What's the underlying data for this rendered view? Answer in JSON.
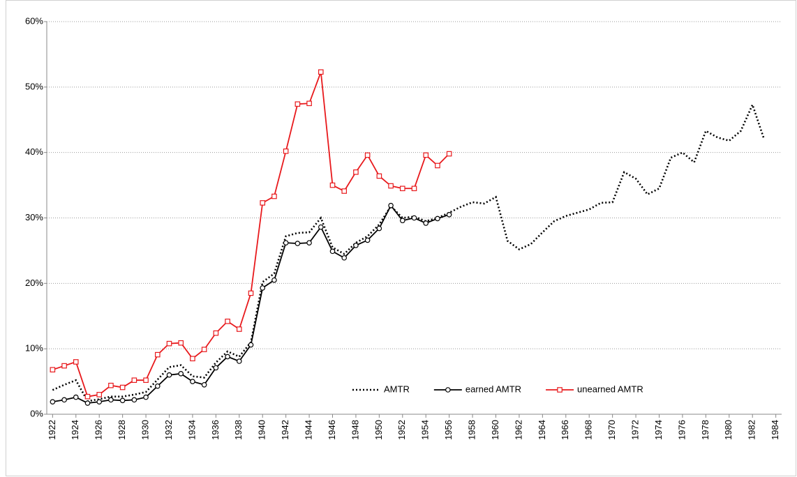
{
  "chart_data": {
    "type": "line",
    "x": [
      1922,
      1923,
      1924,
      1925,
      1926,
      1927,
      1928,
      1929,
      1930,
      1931,
      1932,
      1933,
      1934,
      1935,
      1936,
      1937,
      1938,
      1939,
      1940,
      1941,
      1942,
      1943,
      1944,
      1945,
      1946,
      1947,
      1948,
      1949,
      1950,
      1951,
      1952,
      1953,
      1954,
      1955,
      1956,
      1957,
      1958,
      1959,
      1960,
      1961,
      1962,
      1963,
      1964,
      1965,
      1966,
      1967,
      1968,
      1969,
      1970,
      1971,
      1972,
      1973,
      1974,
      1975,
      1976,
      1977,
      1978,
      1979,
      1980,
      1981,
      1982,
      1983
    ],
    "xlim": [
      1921.5,
      1984.5
    ],
    "xticks": [
      1922,
      1924,
      1926,
      1928,
      1930,
      1932,
      1934,
      1936,
      1938,
      1940,
      1942,
      1944,
      1946,
      1948,
      1950,
      1952,
      1954,
      1956,
      1958,
      1960,
      1962,
      1964,
      1966,
      1968,
      1970,
      1972,
      1974,
      1976,
      1978,
      1980,
      1982,
      1984
    ],
    "ylim": [
      0,
      60
    ],
    "yticks": [
      {
        "value": 0,
        "label": "0%"
      },
      {
        "value": 10,
        "label": "10%"
      },
      {
        "value": 20,
        "label": "20%"
      },
      {
        "value": 30,
        "label": "30%"
      },
      {
        "value": 40,
        "label": "40%"
      },
      {
        "value": 50,
        "label": "50%"
      },
      {
        "value": 60,
        "label": "60%"
      }
    ],
    "grid": true,
    "legend": "bottom",
    "series": [
      {
        "name": "AMTR",
        "color": "#000000",
        "style": "dotted",
        "marker": "none",
        "values": [
          3.7,
          4.5,
          5.2,
          2.0,
          2.3,
          2.7,
          2.7,
          3.0,
          3.4,
          5.3,
          7.2,
          7.5,
          5.8,
          5.6,
          7.9,
          9.6,
          8.8,
          11.0,
          20.2,
          21.5,
          27.2,
          27.7,
          27.8,
          30.0,
          25.5,
          24.5,
          26.2,
          27.2,
          29.0,
          31.8,
          30.0,
          30.2,
          29.5,
          30.0,
          30.8,
          31.7,
          32.4,
          32.2,
          33.2,
          26.5,
          25.2,
          26.0,
          27.8,
          29.5,
          30.3,
          30.8,
          31.3,
          32.3,
          32.4,
          37.0,
          36.0,
          33.6,
          34.5,
          39.2,
          40.0,
          38.5,
          43.3,
          42.3,
          41.8,
          43.3,
          47.3,
          42.0
        ]
      },
      {
        "name": "earned AMTR",
        "color": "#000000",
        "style": "solid",
        "marker": "circle",
        "values": [
          1.9,
          2.2,
          2.6,
          1.7,
          1.9,
          2.2,
          2.1,
          2.2,
          2.6,
          4.3,
          6.0,
          6.2,
          5.0,
          4.5,
          7.1,
          8.8,
          8.1,
          10.6,
          19.3,
          20.5,
          26.2,
          26.1,
          26.2,
          28.6,
          24.9,
          23.9,
          25.8,
          26.6,
          28.4,
          31.9,
          29.6,
          30.0,
          29.2,
          29.9,
          30.5,
          null,
          null,
          null,
          null,
          null,
          null,
          null,
          null,
          null,
          null,
          null,
          null,
          null,
          null,
          null,
          null,
          null,
          null,
          null,
          null,
          null,
          null,
          null,
          null,
          null,
          null,
          null
        ]
      },
      {
        "name": "unearned AMTR",
        "color": "#e8191c",
        "style": "solid",
        "marker": "square",
        "values": [
          6.8,
          7.4,
          8.0,
          2.7,
          3.0,
          4.4,
          4.1,
          5.2,
          5.2,
          9.1,
          10.8,
          10.9,
          8.5,
          9.9,
          12.4,
          14.2,
          13.0,
          18.5,
          32.3,
          33.3,
          40.2,
          47.4,
          47.5,
          52.3,
          35.0,
          34.1,
          37.0,
          39.6,
          36.4,
          34.9,
          34.5,
          34.5,
          39.6,
          38.0,
          39.8,
          null,
          null,
          null,
          null,
          null,
          null,
          null,
          null,
          null,
          null,
          null,
          null,
          null,
          null,
          null,
          null,
          null,
          null,
          null,
          null,
          null,
          null,
          null,
          null,
          null,
          null,
          null
        ]
      }
    ]
  }
}
